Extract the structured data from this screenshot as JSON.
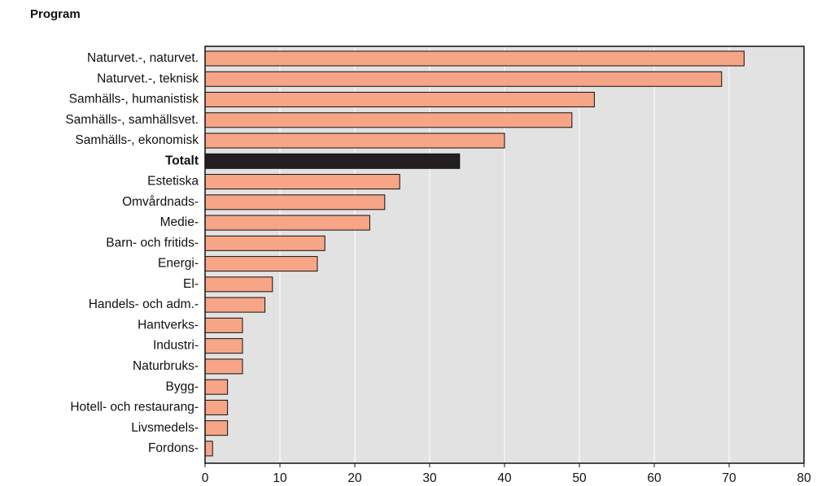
{
  "chart_data": {
    "type": "barh",
    "title": "Program",
    "categories": [
      "Naturvet.-, naturvet.",
      "Naturvet.-, teknisk",
      "Samhälls-, humanistisk",
      "Samhälls-, samhällsvet.",
      "Samhälls-, ekonomisk",
      "Totalt",
      "Estetiska",
      "Omvårdnads-",
      "Medie-",
      "Barn- och fritids-",
      "Energi-",
      "El-",
      "Handels- och adm.-",
      "Hantverks-",
      "Industri-",
      "Naturbruks-",
      "Bygg-",
      "Hotell- och restaurang-",
      "Livsmedels-",
      "Fordons-"
    ],
    "values": [
      72,
      69,
      52,
      49,
      40,
      34,
      26,
      24,
      22,
      16,
      15,
      9,
      8,
      5,
      5,
      5,
      3,
      3,
      3,
      1
    ],
    "color": "#f7a587",
    "colors": [
      "#f7a587",
      "#f7a587",
      "#f7a587",
      "#f7a587",
      "#f7a587",
      "#231f20",
      "#f7a587",
      "#f7a587",
      "#f7a587",
      "#f7a587",
      "#f7a587",
      "#f7a587",
      "#f7a587",
      "#f7a587",
      "#f7a587",
      "#f7a587",
      "#f7a587",
      "#f7a587",
      "#f7a587",
      "#f7a587"
    ],
    "xlim": [
      0,
      80
    ],
    "xticks": [
      0,
      10,
      20,
      30,
      40,
      50,
      60,
      70,
      80
    ],
    "grid": true
  }
}
